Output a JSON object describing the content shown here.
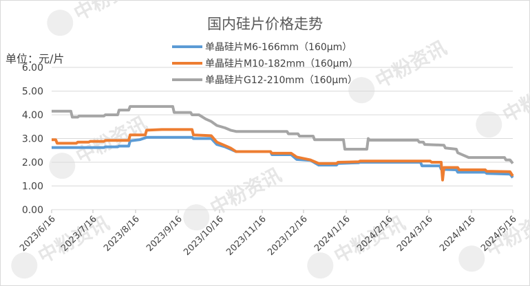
{
  "chart_data": {
    "type": "line",
    "title": "国内硅片价格走势",
    "unit_label": "单位：元/片",
    "watermark": "中粉资讯",
    "ylim": [
      0,
      6
    ],
    "yticks": [
      "0.00",
      "1.00",
      "2.00",
      "3.00",
      "4.00",
      "5.00",
      "6.00"
    ],
    "x_range": [
      "2023-06-16",
      "2024-05-16"
    ],
    "xticks": [
      {
        "label": "2023/6/16",
        "date": "2023-06-16"
      },
      {
        "label": "2023/7/16",
        "date": "2023-07-16"
      },
      {
        "label": "2023/8/16",
        "date": "2023-08-16"
      },
      {
        "label": "2023/9/16",
        "date": "2023-09-16"
      },
      {
        "label": "2023/10/16",
        "date": "2023-10-16"
      },
      {
        "label": "2023/11/16",
        "date": "2023-11-16"
      },
      {
        "label": "2023/12/16",
        "date": "2023-12-16"
      },
      {
        "label": "2024/1/16",
        "date": "2024-01-16"
      },
      {
        "label": "2024/2/16",
        "date": "2024-02-16"
      },
      {
        "label": "2024/3/16",
        "date": "2024-03-16"
      },
      {
        "label": "2024/4/16",
        "date": "2024-04-16"
      },
      {
        "label": "2024/5/16",
        "date": "2024-05-16"
      }
    ],
    "grid": true,
    "legend_position": "top",
    "series": [
      {
        "name": "单晶硅片M6-166mm（160μm）",
        "color": "#5b9bd5",
        "points": [
          [
            "2023-06-16",
            2.62
          ],
          [
            "2023-07-24",
            2.62
          ],
          [
            "2023-07-25",
            2.65
          ],
          [
            "2023-08-03",
            2.65
          ],
          [
            "2023-08-04",
            2.68
          ],
          [
            "2023-08-11",
            2.68
          ],
          [
            "2023-08-12",
            2.9
          ],
          [
            "2023-08-19",
            2.95
          ],
          [
            "2023-08-24",
            3.05
          ],
          [
            "2023-09-26",
            3.05
          ],
          [
            "2023-09-27",
            3.0
          ],
          [
            "2023-10-10",
            3.0
          ],
          [
            "2023-10-14",
            2.75
          ],
          [
            "2023-10-20",
            2.65
          ],
          [
            "2023-10-24",
            2.55
          ],
          [
            "2023-10-28",
            2.45
          ],
          [
            "2023-11-22",
            2.45
          ],
          [
            "2023-11-23",
            2.32
          ],
          [
            "2023-12-07",
            2.32
          ],
          [
            "2023-12-11",
            2.12
          ],
          [
            "2023-12-21",
            2.08
          ],
          [
            "2023-12-27",
            1.88
          ],
          [
            "2024-01-09",
            1.88
          ],
          [
            "2024-01-10",
            1.95
          ],
          [
            "2024-01-25",
            1.98
          ],
          [
            "2024-01-26",
            2.0
          ],
          [
            "2024-03-10",
            2.0
          ],
          [
            "2024-03-11",
            1.85
          ],
          [
            "2024-03-24",
            1.85
          ],
          [
            "2024-03-25",
            1.7
          ],
          [
            "2024-04-05",
            1.68
          ],
          [
            "2024-04-06",
            1.58
          ],
          [
            "2024-04-26",
            1.58
          ],
          [
            "2024-04-27",
            1.53
          ],
          [
            "2024-05-14",
            1.5
          ],
          [
            "2024-05-16",
            1.35
          ]
        ]
      },
      {
        "name": "单晶硅片M10-182mm（160μm）",
        "color": "#ed7d31",
        "points": [
          [
            "2023-06-16",
            2.95
          ],
          [
            "2023-06-19",
            2.95
          ],
          [
            "2023-06-20",
            2.8
          ],
          [
            "2023-07-04",
            2.8
          ],
          [
            "2023-07-05",
            2.85
          ],
          [
            "2023-07-13",
            2.85
          ],
          [
            "2023-07-14",
            2.88
          ],
          [
            "2023-07-24",
            2.88
          ],
          [
            "2023-07-25",
            2.92
          ],
          [
            "2023-08-11",
            2.92
          ],
          [
            "2023-08-12",
            3.15
          ],
          [
            "2023-08-23",
            3.15
          ],
          [
            "2023-08-24",
            3.35
          ],
          [
            "2023-09-04",
            3.38
          ],
          [
            "2023-09-26",
            3.38
          ],
          [
            "2023-09-27",
            3.15
          ],
          [
            "2023-10-10",
            3.12
          ],
          [
            "2023-10-14",
            2.85
          ],
          [
            "2023-10-20",
            2.7
          ],
          [
            "2023-10-24",
            2.6
          ],
          [
            "2023-10-28",
            2.45
          ],
          [
            "2023-11-22",
            2.45
          ],
          [
            "2023-11-23",
            2.38
          ],
          [
            "2023-12-07",
            2.38
          ],
          [
            "2023-12-11",
            2.22
          ],
          [
            "2023-12-21",
            2.1
          ],
          [
            "2023-12-27",
            1.95
          ],
          [
            "2024-01-09",
            1.95
          ],
          [
            "2024-01-10",
            2.0
          ],
          [
            "2024-01-25",
            2.02
          ],
          [
            "2024-01-26",
            2.05
          ],
          [
            "2024-03-17",
            2.05
          ],
          [
            "2024-03-18",
            2.0
          ],
          [
            "2024-03-25",
            2.0
          ],
          [
            "2024-03-26",
            1.25
          ],
          [
            "2024-03-27",
            1.78
          ],
          [
            "2024-04-06",
            1.78
          ],
          [
            "2024-04-07",
            1.68
          ],
          [
            "2024-04-26",
            1.68
          ],
          [
            "2024-04-27",
            1.62
          ],
          [
            "2024-05-14",
            1.6
          ],
          [
            "2024-05-16",
            1.42
          ]
        ]
      },
      {
        "name": "单晶硅片G12-210mm（160μm）",
        "color": "#a5a5a5",
        "points": [
          [
            "2023-06-16",
            4.15
          ],
          [
            "2023-06-30",
            4.15
          ],
          [
            "2023-07-01",
            3.9
          ],
          [
            "2023-07-05",
            3.9
          ],
          [
            "2023-07-06",
            3.95
          ],
          [
            "2023-07-24",
            3.95
          ],
          [
            "2023-07-25",
            4.0
          ],
          [
            "2023-08-03",
            4.0
          ],
          [
            "2023-08-04",
            4.2
          ],
          [
            "2023-08-11",
            4.2
          ],
          [
            "2023-08-12",
            4.35
          ],
          [
            "2023-09-12",
            4.35
          ],
          [
            "2023-09-13",
            4.1
          ],
          [
            "2023-09-25",
            4.1
          ],
          [
            "2023-09-26",
            4.0
          ],
          [
            "2023-10-01",
            4.0
          ],
          [
            "2023-10-06",
            3.82
          ],
          [
            "2023-10-10",
            3.72
          ],
          [
            "2023-10-14",
            3.55
          ],
          [
            "2023-10-20",
            3.45
          ],
          [
            "2023-10-24",
            3.35
          ],
          [
            "2023-10-28",
            3.3
          ],
          [
            "2023-12-04",
            3.3
          ],
          [
            "2023-12-05",
            3.2
          ],
          [
            "2023-12-12",
            3.2
          ],
          [
            "2023-12-13",
            3.1
          ],
          [
            "2023-12-23",
            3.1
          ],
          [
            "2023-12-24",
            2.95
          ],
          [
            "2024-01-14",
            2.95
          ],
          [
            "2024-01-15",
            2.55
          ],
          [
            "2024-01-31",
            2.55
          ],
          [
            "2024-02-01",
            3.0
          ],
          [
            "2024-02-02",
            2.93
          ],
          [
            "2024-03-08",
            2.93
          ],
          [
            "2024-03-09",
            2.85
          ],
          [
            "2024-03-12",
            2.85
          ],
          [
            "2024-03-13",
            2.75
          ],
          [
            "2024-03-27",
            2.72
          ],
          [
            "2024-03-28",
            2.6
          ],
          [
            "2024-04-05",
            2.55
          ],
          [
            "2024-04-06",
            2.4
          ],
          [
            "2024-04-10",
            2.3
          ],
          [
            "2024-04-14",
            2.2
          ],
          [
            "2024-05-10",
            2.2
          ],
          [
            "2024-05-11",
            2.1
          ],
          [
            "2024-05-14",
            2.1
          ],
          [
            "2024-05-16",
            1.95
          ]
        ]
      }
    ]
  }
}
